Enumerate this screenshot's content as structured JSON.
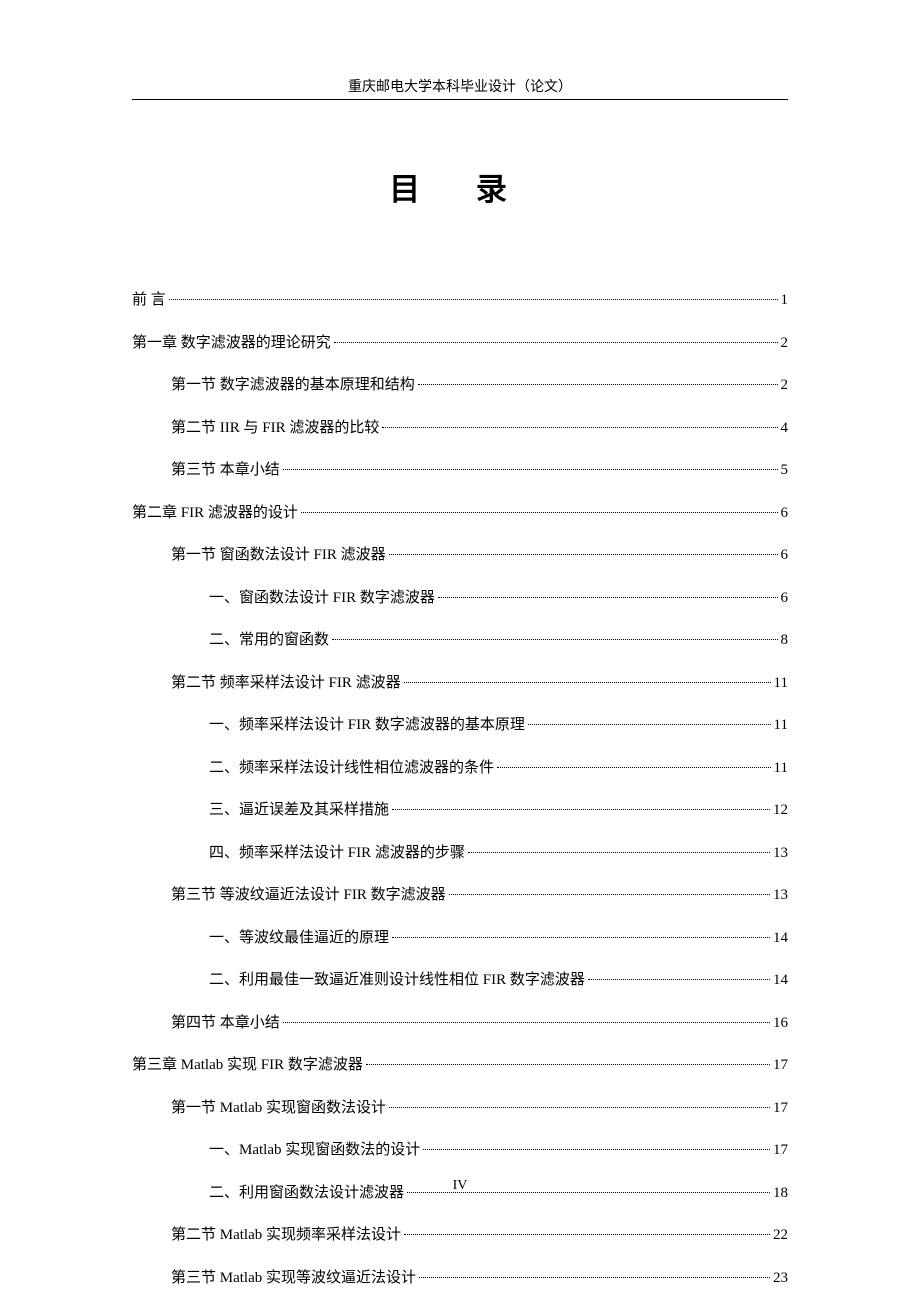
{
  "header": "重庆邮电大学本科毕业设计（论文）",
  "title": "目 录",
  "footer": "IV",
  "toc": [
    {
      "indent": 0,
      "label": "前    言",
      "page": "1",
      "special": "preface"
    },
    {
      "indent": 0,
      "label": "第一章   数字滤波器的理论研究",
      "page": "2"
    },
    {
      "indent": 1,
      "label": "第一节  数字滤波器的基本原理和结构",
      "page": "2"
    },
    {
      "indent": 1,
      "label": "第二节  IIR 与 FIR 滤波器的比较",
      "page": "4"
    },
    {
      "indent": 1,
      "label": "第三节  本章小结",
      "page": "5"
    },
    {
      "indent": 0,
      "label": "第二章  FIR 滤波器的设计",
      "page": "6"
    },
    {
      "indent": 1,
      "label": "第一节  窗函数法设计 FIR 滤波器",
      "page": "6"
    },
    {
      "indent": 2,
      "label": "一、窗函数法设计 FIR 数字滤波器",
      "page": "6"
    },
    {
      "indent": 2,
      "label": "二、常用的窗函数",
      "page": "8"
    },
    {
      "indent": 1,
      "label": "第二节  频率采样法设计 FIR 滤波器",
      "page": "11"
    },
    {
      "indent": 2,
      "label": "一、频率采样法设计 FIR 数字滤波器的基本原理",
      "page": "11"
    },
    {
      "indent": 2,
      "label": "二、频率采样法设计线性相位滤波器的条件",
      "page": "11"
    },
    {
      "indent": 2,
      "label": "三、逼近误差及其采样措施",
      "page": "12"
    },
    {
      "indent": 2,
      "label": "四、频率采样法设计 FIR 滤波器的步骤",
      "page": "13"
    },
    {
      "indent": 1,
      "label": "第三节  等波纹逼近法设计 FIR 数字滤波器",
      "page": "13"
    },
    {
      "indent": 2,
      "label": "一、等波纹最佳逼近的原理",
      "page": "14"
    },
    {
      "indent": 2,
      "label": "二、利用最佳一致逼近准则设计线性相位 FIR 数字滤波器",
      "page": "14"
    },
    {
      "indent": 1,
      "label": "第四节  本章小结",
      "page": "16"
    },
    {
      "indent": 0,
      "label": "第三章   Matlab 实现 FIR 数字滤波器",
      "page": "17"
    },
    {
      "indent": 1,
      "label": "第一节  Matlab 实现窗函数法设计",
      "page": "17"
    },
    {
      "indent": 2,
      "label": "一、Matlab 实现窗函数法的设计",
      "page": "17"
    },
    {
      "indent": 2,
      "label": "二、利用窗函数法设计滤波器",
      "page": "18"
    },
    {
      "indent": 1,
      "label": "第二节  Matlab 实现频率采样法设计",
      "page": "22"
    },
    {
      "indent": 1,
      "label": "第三节  Matlab 实现等波纹逼近法设计",
      "page": "23"
    }
  ]
}
